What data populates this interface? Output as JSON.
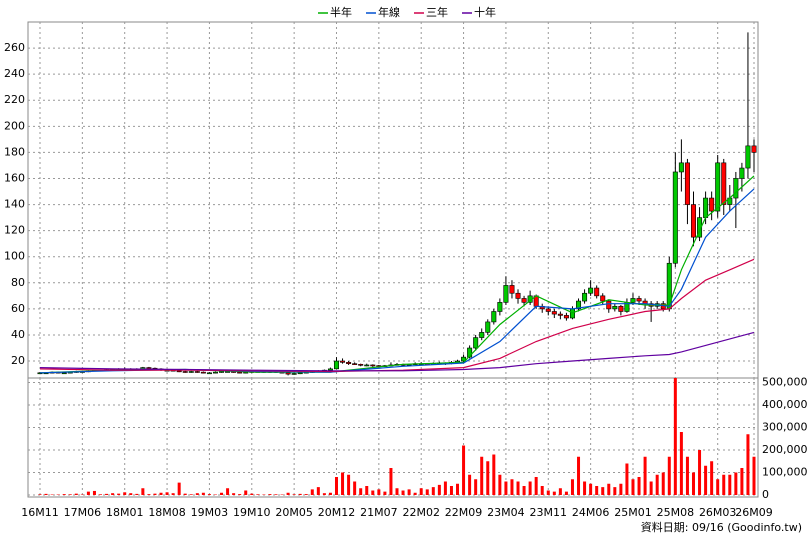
{
  "chart_data": {
    "type": "candlestick",
    "legend": "top",
    "grid": true,
    "footer": "資料日期: 09/16 (Goodinfo.tw)",
    "up_color": "#00c800",
    "down_color": "#ff0000",
    "volume_color": "#ff0000",
    "ylim": [
      7,
      280
    ],
    "yticks": [
      20,
      40,
      60,
      80,
      100,
      120,
      140,
      160,
      180,
      200,
      220,
      240,
      260
    ],
    "y2lim": [
      0,
      520000
    ],
    "y2ticks": [
      0,
      {
        "value": 100000,
        "label": "100,000"
      },
      {
        "value": 200000,
        "label": "200,000"
      },
      {
        "value": 300000,
        "label": "300,000"
      },
      {
        "value": 400000,
        "label": "400,000"
      },
      {
        "value": 500000,
        "label": "500,000"
      }
    ],
    "categories": [
      "16M11",
      null,
      null,
      null,
      null,
      null,
      null,
      "17M06",
      null,
      null,
      null,
      null,
      null,
      null,
      "18M01",
      null,
      null,
      null,
      null,
      null,
      null,
      "18M08",
      null,
      null,
      null,
      null,
      null,
      null,
      "19M03",
      null,
      null,
      null,
      null,
      null,
      null,
      "19M10",
      null,
      null,
      null,
      null,
      null,
      null,
      "20M05",
      null,
      null,
      null,
      null,
      null,
      null,
      "20M12",
      null,
      null,
      null,
      null,
      null,
      null,
      "21M07",
      null,
      null,
      null,
      null,
      null,
      null,
      "22M02",
      null,
      null,
      null,
      null,
      null,
      null,
      "22M09",
      null,
      null,
      null,
      null,
      null,
      null,
      "23M04",
      null,
      null,
      null,
      null,
      null,
      null,
      "23M11",
      null,
      null,
      null,
      null,
      null,
      null,
      "24M06",
      null,
      null,
      null,
      null,
      null,
      null,
      "25M01",
      null,
      null,
      null,
      null,
      null,
      null,
      "25M08",
      null,
      null,
      null,
      null,
      null,
      null,
      "26M03",
      null,
      null,
      null,
      null,
      null,
      "26M09"
    ],
    "ohlc": [
      [
        10.5,
        11.5,
        10,
        11
      ],
      [
        11,
        11.5,
        10.5,
        11
      ],
      [
        11,
        12,
        10.5,
        11.5
      ],
      [
        11.5,
        12,
        10.5,
        11
      ],
      [
        11,
        11.5,
        10.5,
        11
      ],
      [
        11,
        12,
        10.5,
        11.5
      ],
      [
        11.5,
        12.5,
        11,
        12
      ],
      [
        12,
        12.5,
        11.5,
        12
      ],
      [
        12,
        13,
        11.5,
        12.5
      ],
      [
        12.5,
        13.5,
        12,
        13
      ],
      [
        13,
        13.5,
        12.5,
        13
      ],
      [
        13,
        14,
        12.5,
        13.5
      ],
      [
        13.5,
        14,
        12.5,
        13
      ],
      [
        13,
        14.5,
        12.5,
        14
      ],
      [
        14,
        15,
        13.5,
        14
      ],
      [
        14,
        14.5,
        13,
        13.5
      ],
      [
        13.5,
        14.5,
        13,
        14
      ],
      [
        14,
        15.5,
        13.5,
        15
      ],
      [
        15,
        15.5,
        14,
        14.5
      ],
      [
        14.5,
        15,
        13.5,
        14
      ],
      [
        14,
        14.5,
        12.5,
        13
      ],
      [
        13,
        13.5,
        12.5,
        13
      ],
      [
        13,
        13.5,
        12,
        12.5
      ],
      [
        12.5,
        13,
        11.5,
        12
      ],
      [
        12,
        12.5,
        11,
        11.5
      ],
      [
        11.5,
        12.5,
        11,
        12
      ],
      [
        12,
        12.5,
        11,
        11.5
      ],
      [
        11.5,
        12,
        10.5,
        11
      ],
      [
        11,
        11.5,
        10.5,
        11
      ],
      [
        11,
        12,
        10.5,
        11.5
      ],
      [
        11.5,
        12.5,
        11,
        12
      ],
      [
        12,
        12.5,
        11.5,
        12
      ],
      [
        12,
        12.5,
        11,
        11.5
      ],
      [
        11.5,
        12,
        10.5,
        11
      ],
      [
        11,
        12,
        10.5,
        11.5
      ],
      [
        11.5,
        12.5,
        11,
        12
      ],
      [
        12,
        12.5,
        11.5,
        12
      ],
      [
        12,
        12.5,
        11,
        11.5
      ],
      [
        11.5,
        12.5,
        11,
        12
      ],
      [
        12,
        12.5,
        11,
        11.5
      ],
      [
        11.5,
        12,
        10.5,
        11
      ],
      [
        11,
        11.5,
        9,
        10
      ],
      [
        10,
        11,
        9.5,
        10.5
      ],
      [
        10.5,
        11.5,
        10,
        11
      ],
      [
        11,
        12,
        10.5,
        11.5
      ],
      [
        11.5,
        12.5,
        11,
        12
      ],
      [
        12,
        13,
        11.5,
        12.5
      ],
      [
        12.5,
        13.5,
        12,
        13
      ],
      [
        13,
        15,
        12.5,
        14
      ],
      [
        14,
        23,
        13.5,
        20
      ],
      [
        20,
        22,
        18,
        19
      ],
      [
        19,
        20,
        17,
        18
      ],
      [
        18,
        19,
        17,
        17.5
      ],
      [
        17.5,
        18,
        16,
        17
      ],
      [
        17,
        18,
        16,
        17
      ],
      [
        17,
        17.5,
        15.5,
        16.5
      ],
      [
        16.5,
        17,
        15,
        16
      ],
      [
        16,
        17,
        15.5,
        16.5
      ],
      [
        16.5,
        19,
        16,
        17
      ],
      [
        17,
        18.5,
        16.5,
        17.5
      ],
      [
        17.5,
        18,
        16,
        17
      ],
      [
        17,
        18,
        16.5,
        17.5
      ],
      [
        17.5,
        19,
        17,
        18
      ],
      [
        18,
        19,
        17,
        18
      ],
      [
        18,
        18.5,
        17,
        17.5
      ],
      [
        17.5,
        19,
        17,
        18
      ],
      [
        18,
        19.5,
        17.5,
        18.5
      ],
      [
        18.5,
        19,
        17,
        18
      ],
      [
        18,
        20,
        17.5,
        19
      ],
      [
        19,
        21,
        18.5,
        20
      ],
      [
        20,
        25,
        19,
        23
      ],
      [
        23,
        32,
        22,
        30
      ],
      [
        30,
        40,
        28,
        38
      ],
      [
        38,
        45,
        36,
        42
      ],
      [
        42,
        52,
        40,
        50
      ],
      [
        50,
        60,
        48,
        58
      ],
      [
        58,
        68,
        55,
        65
      ],
      [
        65,
        85,
        63,
        78
      ],
      [
        78,
        82,
        68,
        72
      ],
      [
        72,
        75,
        64,
        68
      ],
      [
        68,
        70,
        62,
        65
      ],
      [
        65,
        74,
        63,
        70
      ],
      [
        70,
        71,
        60,
        62
      ],
      [
        62,
        64,
        57,
        60
      ],
      [
        60,
        62,
        55,
        58
      ],
      [
        58,
        60,
        53,
        56
      ],
      [
        56,
        58,
        52,
        55
      ],
      [
        55,
        57,
        51,
        53
      ],
      [
        53,
        62,
        52,
        60
      ],
      [
        60,
        68,
        58,
        66
      ],
      [
        66,
        75,
        64,
        72
      ],
      [
        72,
        82,
        70,
        76
      ],
      [
        76,
        78,
        68,
        70
      ],
      [
        70,
        72,
        63,
        66
      ],
      [
        66,
        67,
        57,
        60
      ],
      [
        60,
        64,
        58,
        62
      ],
      [
        62,
        63,
        55,
        58
      ],
      [
        58,
        68,
        57,
        65
      ],
      [
        65,
        72,
        63,
        68
      ],
      [
        68,
        70,
        63,
        66
      ],
      [
        66,
        68,
        60,
        64
      ],
      [
        64,
        66,
        50,
        62
      ],
      [
        62,
        66,
        60,
        64
      ],
      [
        64,
        66,
        58,
        60
      ],
      [
        60,
        100,
        58,
        95
      ],
      [
        95,
        180,
        92,
        165
      ],
      [
        165,
        190,
        150,
        172
      ],
      [
        172,
        175,
        125,
        140
      ],
      [
        140,
        150,
        108,
        115
      ],
      [
        115,
        138,
        112,
        130
      ],
      [
        130,
        150,
        125,
        145
      ],
      [
        145,
        150,
        128,
        135
      ],
      [
        135,
        178,
        130,
        172
      ],
      [
        172,
        175,
        132,
        140
      ],
      [
        140,
        155,
        135,
        145
      ],
      [
        145,
        165,
        122,
        160
      ],
      [
        160,
        172,
        150,
        168
      ],
      [
        168,
        272,
        160,
        185
      ],
      [
        185,
        190,
        165,
        180
      ]
    ],
    "volume": [
      3000,
      5000,
      2000,
      2000,
      4000,
      3000,
      6000,
      2000,
      15000,
      18000,
      3000,
      5000,
      8000,
      6000,
      12000,
      8000,
      5000,
      30000,
      4000,
      6000,
      10000,
      12000,
      8000,
      55000,
      6000,
      3000,
      8000,
      10000,
      4000,
      2000,
      10000,
      30000,
      8000,
      4000,
      20000,
      6000,
      3000,
      2000,
      4000,
      3000,
      2000,
      10000,
      3000,
      5000,
      4000,
      25000,
      35000,
      8000,
      10000,
      80000,
      100000,
      90000,
      60000,
      30000,
      40000,
      20000,
      25000,
      15000,
      120000,
      30000,
      20000,
      25000,
      10000,
      30000,
      25000,
      35000,
      45000,
      60000,
      40000,
      50000,
      220000,
      90000,
      70000,
      170000,
      150000,
      180000,
      90000,
      60000,
      70000,
      60000,
      40000,
      60000,
      80000,
      40000,
      20000,
      15000,
      30000,
      15000,
      70000,
      170000,
      60000,
      50000,
      40000,
      35000,
      50000,
      35000,
      50000,
      140000,
      70000,
      80000,
      170000,
      60000,
      90000,
      100000,
      170000,
      520000,
      280000,
      170000,
      100000,
      200000,
      130000,
      150000,
      70000,
      90000,
      90000,
      100000,
      120000,
      270000,
      170000
    ],
    "series": [
      {
        "name": "半年",
        "color": "#00b000",
        "x": [
          0,
          12,
          24,
          36,
          48,
          60,
          70,
          76,
          82,
          88,
          94,
          100,
          104,
          106,
          110,
          114,
          118
        ],
        "values": [
          11,
          13,
          13.5,
          11.5,
          11.5,
          17.5,
          19,
          48,
          70,
          57,
          67,
          63,
          63,
          90,
          130,
          145,
          162
        ]
      },
      {
        "name": "年線",
        "color": "#0050d0",
        "x": [
          0,
          12,
          24,
          36,
          48,
          60,
          70,
          76,
          82,
          88,
          94,
          100,
          104,
          106,
          110,
          114,
          118
        ],
        "values": [
          11,
          12.5,
          13.5,
          12,
          11.5,
          16,
          18.5,
          35,
          62,
          60,
          64,
          64,
          62,
          75,
          115,
          135,
          152
        ]
      },
      {
        "name": "三年",
        "color": "#d0004a",
        "x": [
          0,
          12,
          24,
          36,
          48,
          60,
          70,
          76,
          82,
          88,
          94,
          100,
          104,
          106,
          110,
          114,
          118
        ],
        "values": [
          14,
          13,
          13,
          12.5,
          12,
          13,
          15,
          22,
          35,
          45,
          52,
          58,
          60,
          68,
          82,
          90,
          98
        ]
      },
      {
        "name": "十年",
        "color": "#6000a0",
        "x": [
          0,
          12,
          24,
          36,
          48,
          60,
          70,
          76,
          82,
          88,
          94,
          100,
          104,
          106,
          110,
          114,
          118
        ],
        "values": [
          15,
          14,
          13.5,
          13,
          12.5,
          12.5,
          13.5,
          15,
          18,
          20,
          22,
          24,
          25,
          27,
          32,
          37,
          42
        ]
      }
    ]
  }
}
